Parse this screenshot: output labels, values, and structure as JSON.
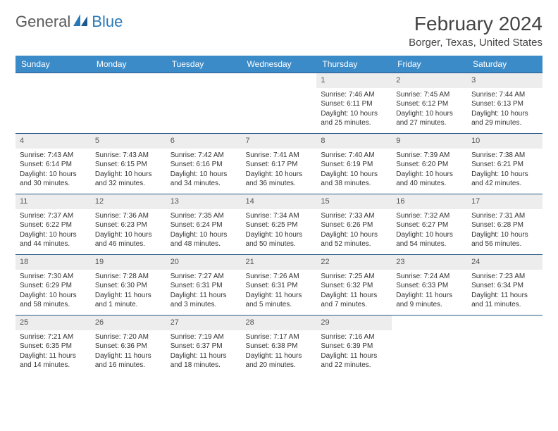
{
  "logo": {
    "text1": "General",
    "text2": "Blue"
  },
  "title": "February 2024",
  "location": "Borger, Texas, United States",
  "dayHeaders": [
    "Sunday",
    "Monday",
    "Tuesday",
    "Wednesday",
    "Thursday",
    "Friday",
    "Saturday"
  ],
  "weeks": [
    [
      {
        "n": "",
        "l": [
          "",
          "",
          "",
          ""
        ]
      },
      {
        "n": "",
        "l": [
          "",
          "",
          "",
          ""
        ]
      },
      {
        "n": "",
        "l": [
          "",
          "",
          "",
          ""
        ]
      },
      {
        "n": "",
        "l": [
          "",
          "",
          "",
          ""
        ]
      },
      {
        "n": "1",
        "l": [
          "Sunrise: 7:46 AM",
          "Sunset: 6:11 PM",
          "Daylight: 10 hours",
          "and 25 minutes."
        ]
      },
      {
        "n": "2",
        "l": [
          "Sunrise: 7:45 AM",
          "Sunset: 6:12 PM",
          "Daylight: 10 hours",
          "and 27 minutes."
        ]
      },
      {
        "n": "3",
        "l": [
          "Sunrise: 7:44 AM",
          "Sunset: 6:13 PM",
          "Daylight: 10 hours",
          "and 29 minutes."
        ]
      }
    ],
    [
      {
        "n": "4",
        "l": [
          "Sunrise: 7:43 AM",
          "Sunset: 6:14 PM",
          "Daylight: 10 hours",
          "and 30 minutes."
        ]
      },
      {
        "n": "5",
        "l": [
          "Sunrise: 7:43 AM",
          "Sunset: 6:15 PM",
          "Daylight: 10 hours",
          "and 32 minutes."
        ]
      },
      {
        "n": "6",
        "l": [
          "Sunrise: 7:42 AM",
          "Sunset: 6:16 PM",
          "Daylight: 10 hours",
          "and 34 minutes."
        ]
      },
      {
        "n": "7",
        "l": [
          "Sunrise: 7:41 AM",
          "Sunset: 6:17 PM",
          "Daylight: 10 hours",
          "and 36 minutes."
        ]
      },
      {
        "n": "8",
        "l": [
          "Sunrise: 7:40 AM",
          "Sunset: 6:19 PM",
          "Daylight: 10 hours",
          "and 38 minutes."
        ]
      },
      {
        "n": "9",
        "l": [
          "Sunrise: 7:39 AM",
          "Sunset: 6:20 PM",
          "Daylight: 10 hours",
          "and 40 minutes."
        ]
      },
      {
        "n": "10",
        "l": [
          "Sunrise: 7:38 AM",
          "Sunset: 6:21 PM",
          "Daylight: 10 hours",
          "and 42 minutes."
        ]
      }
    ],
    [
      {
        "n": "11",
        "l": [
          "Sunrise: 7:37 AM",
          "Sunset: 6:22 PM",
          "Daylight: 10 hours",
          "and 44 minutes."
        ]
      },
      {
        "n": "12",
        "l": [
          "Sunrise: 7:36 AM",
          "Sunset: 6:23 PM",
          "Daylight: 10 hours",
          "and 46 minutes."
        ]
      },
      {
        "n": "13",
        "l": [
          "Sunrise: 7:35 AM",
          "Sunset: 6:24 PM",
          "Daylight: 10 hours",
          "and 48 minutes."
        ]
      },
      {
        "n": "14",
        "l": [
          "Sunrise: 7:34 AM",
          "Sunset: 6:25 PM",
          "Daylight: 10 hours",
          "and 50 minutes."
        ]
      },
      {
        "n": "15",
        "l": [
          "Sunrise: 7:33 AM",
          "Sunset: 6:26 PM",
          "Daylight: 10 hours",
          "and 52 minutes."
        ]
      },
      {
        "n": "16",
        "l": [
          "Sunrise: 7:32 AM",
          "Sunset: 6:27 PM",
          "Daylight: 10 hours",
          "and 54 minutes."
        ]
      },
      {
        "n": "17",
        "l": [
          "Sunrise: 7:31 AM",
          "Sunset: 6:28 PM",
          "Daylight: 10 hours",
          "and 56 minutes."
        ]
      }
    ],
    [
      {
        "n": "18",
        "l": [
          "Sunrise: 7:30 AM",
          "Sunset: 6:29 PM",
          "Daylight: 10 hours",
          "and 58 minutes."
        ]
      },
      {
        "n": "19",
        "l": [
          "Sunrise: 7:28 AM",
          "Sunset: 6:30 PM",
          "Daylight: 11 hours",
          "and 1 minute."
        ]
      },
      {
        "n": "20",
        "l": [
          "Sunrise: 7:27 AM",
          "Sunset: 6:31 PM",
          "Daylight: 11 hours",
          "and 3 minutes."
        ]
      },
      {
        "n": "21",
        "l": [
          "Sunrise: 7:26 AM",
          "Sunset: 6:31 PM",
          "Daylight: 11 hours",
          "and 5 minutes."
        ]
      },
      {
        "n": "22",
        "l": [
          "Sunrise: 7:25 AM",
          "Sunset: 6:32 PM",
          "Daylight: 11 hours",
          "and 7 minutes."
        ]
      },
      {
        "n": "23",
        "l": [
          "Sunrise: 7:24 AM",
          "Sunset: 6:33 PM",
          "Daylight: 11 hours",
          "and 9 minutes."
        ]
      },
      {
        "n": "24",
        "l": [
          "Sunrise: 7:23 AM",
          "Sunset: 6:34 PM",
          "Daylight: 11 hours",
          "and 11 minutes."
        ]
      }
    ],
    [
      {
        "n": "25",
        "l": [
          "Sunrise: 7:21 AM",
          "Sunset: 6:35 PM",
          "Daylight: 11 hours",
          "and 14 minutes."
        ]
      },
      {
        "n": "26",
        "l": [
          "Sunrise: 7:20 AM",
          "Sunset: 6:36 PM",
          "Daylight: 11 hours",
          "and 16 minutes."
        ]
      },
      {
        "n": "27",
        "l": [
          "Sunrise: 7:19 AM",
          "Sunset: 6:37 PM",
          "Daylight: 11 hours",
          "and 18 minutes."
        ]
      },
      {
        "n": "28",
        "l": [
          "Sunrise: 7:17 AM",
          "Sunset: 6:38 PM",
          "Daylight: 11 hours",
          "and 20 minutes."
        ]
      },
      {
        "n": "29",
        "l": [
          "Sunrise: 7:16 AM",
          "Sunset: 6:39 PM",
          "Daylight: 11 hours",
          "and 22 minutes."
        ]
      },
      {
        "n": "",
        "l": [
          "",
          "",
          "",
          ""
        ]
      },
      {
        "n": "",
        "l": [
          "",
          "",
          "",
          ""
        ]
      }
    ]
  ]
}
